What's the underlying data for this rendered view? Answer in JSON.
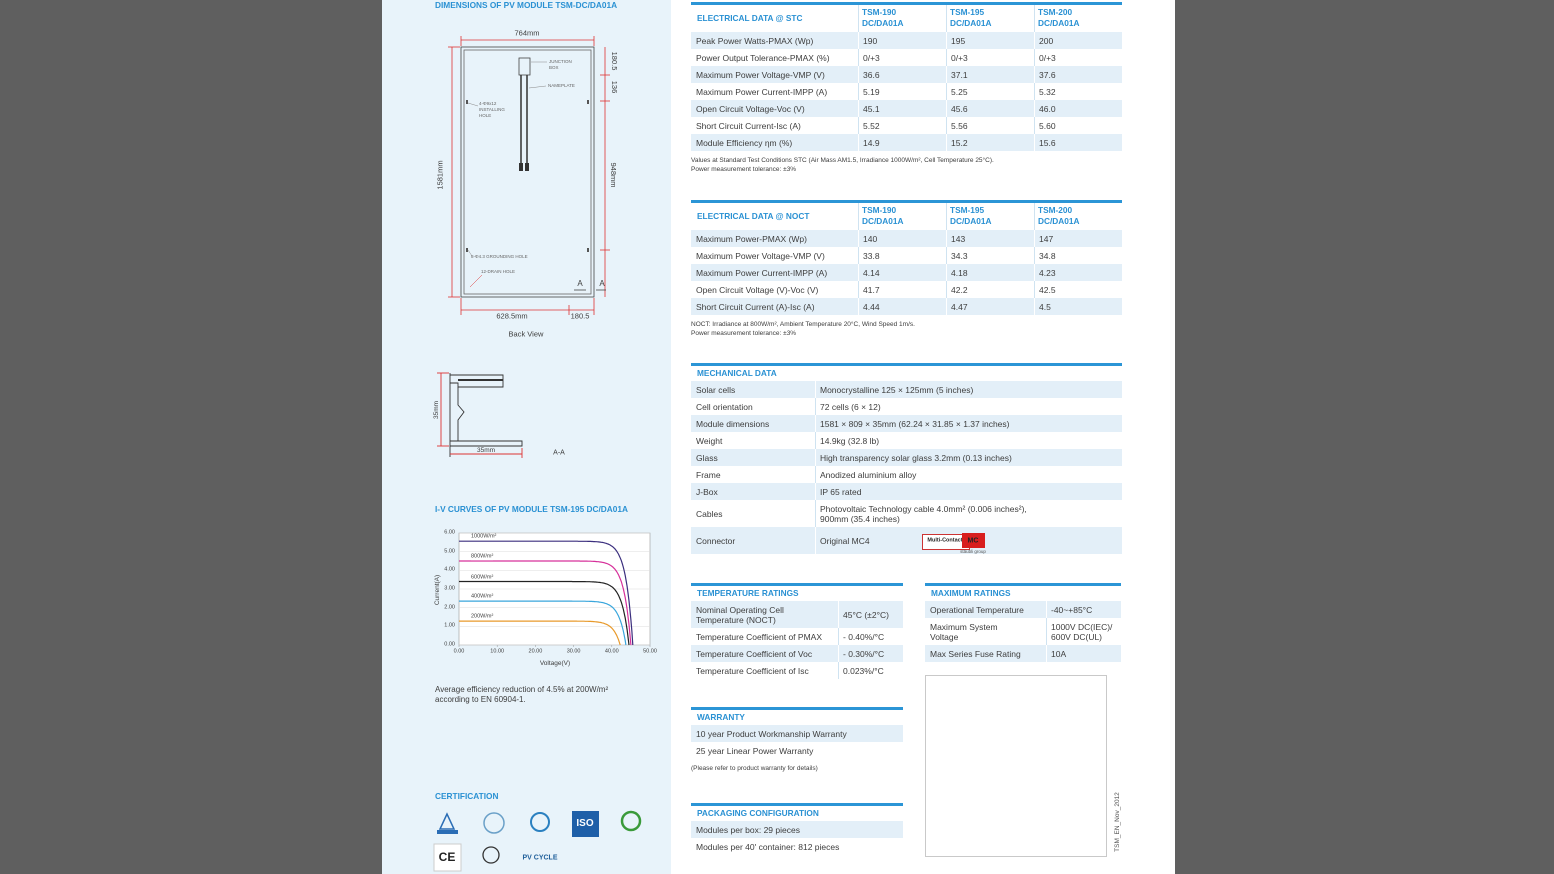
{
  "dimensions": {
    "title": "DIMENSIONS OF PV MODULE TSM-DC/DA01A",
    "width": "764mm",
    "top_offset": "180.5",
    "junction_offset": "136",
    "junction_box": [
      "JUNCTION",
      "BOX"
    ],
    "nameplate": "NAMEPLATE",
    "installing_hole": [
      "4-Φ9x12",
      "INSTALLING",
      "HOLE"
    ],
    "height": "1581mm",
    "hole_spacing": "948mm",
    "grounding_hole": "8-Φ4.3 GROUNDING HOLE",
    "drain_hole": "12-DRAIN HOLE",
    "section_mark_left": "A",
    "section_mark_right": "A",
    "bottom_width": "628.5mm",
    "bottom_offset": "180.5",
    "caption": "Back View"
  },
  "section": {
    "height": "35mm",
    "width": "35mm",
    "caption": "A-A"
  },
  "iv_curves": {
    "title": "I-V CURVES OF PV MODULE TSM-195 DC/DA01A",
    "y_label": "Current(A)",
    "x_label": "Voltage(V)",
    "xlim": [
      0,
      50
    ],
    "ylim": [
      0,
      6
    ],
    "grid": true,
    "xticks": [
      {
        "value": 0,
        "label": "0.00"
      },
      {
        "value": 10,
        "label": "10.00"
      },
      {
        "value": 20,
        "label": "20.00"
      },
      {
        "value": 30,
        "label": "30.00"
      },
      {
        "value": 40,
        "label": "40.00"
      },
      {
        "value": 50,
        "label": "50.00"
      }
    ],
    "yticks": [
      {
        "value": 0,
        "label": "0.00"
      },
      {
        "value": 1,
        "label": "1.00"
      },
      {
        "value": 2,
        "label": "2.00"
      },
      {
        "value": 3,
        "label": "3.00"
      },
      {
        "value": 4,
        "label": "4.00"
      },
      {
        "value": 5,
        "label": "5.00"
      },
      {
        "value": 6,
        "label": "6.00"
      }
    ],
    "curves": [
      {
        "name": "1000W/m²",
        "color": "#3b2f7e",
        "isc": 5.56,
        "voc": 45.5
      },
      {
        "name": "800W/m²",
        "color": "#d6309a",
        "isc": 4.5,
        "voc": 45
      },
      {
        "name": "600W/m²",
        "color": "#222222",
        "isc": 3.4,
        "voc": 44.5
      },
      {
        "name": "400W/m²",
        "color": "#3aa6dc",
        "isc": 2.35,
        "voc": 43.7
      },
      {
        "name": "200W/m²",
        "color": "#e89a2b",
        "isc": 1.28,
        "voc": 42.2
      }
    ],
    "note": [
      "Average efficiency reduction of 4.5% at 200W/m²",
      "according to EN 60904-1."
    ]
  },
  "certification": {
    "title": "CERTIFICATION",
    "logos": [
      "ISO",
      "CE",
      "PV CYCLE"
    ]
  },
  "stc": {
    "title": "ELECTRICAL DATA @ STC",
    "columns": [
      [
        "TSM-190",
        "DC/DA01A"
      ],
      [
        "TSM-195",
        "DC/DA01A"
      ],
      [
        "TSM-200",
        "DC/DA01A"
      ]
    ],
    "rows": [
      [
        "Peak Power Watts-PMAX (Wp)",
        "190",
        "195",
        "200"
      ],
      [
        "Power Output Tolerance-PMAX (%)",
        "0/+3",
        "0/+3",
        "0/+3"
      ],
      [
        "Maximum Power Voltage-VMP (V)",
        "36.6",
        "37.1",
        "37.6"
      ],
      [
        "Maximum Power Current-IMPP (A)",
        "5.19",
        "5.25",
        "5.32"
      ],
      [
        "Open Circuit Voltage-Voc (V)",
        "45.1",
        "45.6",
        "46.0"
      ],
      [
        "Short Circuit Current-Isc (A)",
        "5.52",
        "5.56",
        "5.60"
      ],
      [
        "Module Efficiency ηm (%)",
        "14.9",
        "15.2",
        "15.6"
      ]
    ],
    "notes": [
      "Values at Standard Test Conditions STC (Air Mass AM1.5, Irradiance 1000W/m², Cell Temperature 25°C).",
      "Power measurement tolerance: ±3%"
    ]
  },
  "noct": {
    "title": "ELECTRICAL DATA @ NOCT",
    "columns": [
      [
        "TSM-190",
        "DC/DA01A"
      ],
      [
        "TSM-195",
        "DC/DA01A"
      ],
      [
        "TSM-200",
        "DC/DA01A"
      ]
    ],
    "rows": [
      [
        "Maximum Power-PMAX (Wp)",
        "140",
        "143",
        "147"
      ],
      [
        "Maximum Power Voltage-VMP (V)",
        "33.8",
        "34.3",
        "34.8"
      ],
      [
        "Maximum Power Current-IMPP (A)",
        "4.14",
        "4.18",
        "4.23"
      ],
      [
        "Open Circuit Voltage (V)-Voc (V)",
        "41.7",
        "42.2",
        "42.5"
      ],
      [
        "Short Circuit Current (A)-Isc (A)",
        "4.44",
        "4.47",
        "4.5"
      ]
    ],
    "notes": [
      "NOCT: Irradiance at 800W/m², Ambient Temperature 20°C, Wind Speed 1m/s.",
      "Power measurement tolerance: ±3%"
    ]
  },
  "mechanical": {
    "title": "MECHANICAL DATA",
    "rows": [
      [
        "Solar cells",
        "Monocrystalline 125 × 125mm (5 inches)"
      ],
      [
        "Cell orientation",
        "72 cells (6 × 12)"
      ],
      [
        "Module dimensions",
        "1581 × 809 × 35mm (62.24 × 31.85 × 1.37 inches)"
      ],
      [
        "Weight",
        "14.9kg (32.8 lb)"
      ],
      [
        "Glass",
        "High transparency solar glass 3.2mm (0.13 inches)"
      ],
      [
        "Frame",
        "Anodized aluminium alloy"
      ],
      [
        "J-Box",
        "IP 65 rated"
      ],
      [
        "Cables",
        [
          "Photovoltaic Technology cable 4.0mm² (0.006 inches²),",
          "900mm (35.4 inches)"
        ]
      ],
      [
        "Connector",
        "Original MC4"
      ]
    ],
    "connector_logos": [
      "Multi-Contact",
      "MC",
      "stäubli group"
    ]
  },
  "temperature": {
    "title": "TEMPERATURE RATINGS",
    "rows": [
      [
        [
          "Nominal Operating Cell",
          "Temperature (NOCT)"
        ],
        "45°C (±2°C)"
      ],
      [
        "Temperature Coefficient of PMAX",
        "- 0.40%/°C"
      ],
      [
        "Temperature Coefficient of Voc",
        "- 0.30%/°C"
      ],
      [
        "Temperature Coefficient of Isc",
        "0.023%/°C"
      ]
    ]
  },
  "maximum": {
    "title": "MAXIMUM RATINGS",
    "rows": [
      [
        "Operational Temperature",
        "-40~+85°C"
      ],
      [
        [
          "Maximum System",
          "Voltage"
        ],
        [
          "1000V DC(IEC)/",
          "600V DC(UL)"
        ]
      ],
      [
        "Max Series Fuse Rating",
        "10A"
      ]
    ]
  },
  "warranty": {
    "title": "WARRANTY",
    "rows": [
      "10 year Product Workmanship Warranty",
      "25 year Linear Power Warranty"
    ],
    "notes": [
      "(Please refer to product warranty for details)"
    ]
  },
  "packaging": {
    "title": "PACKAGING CONFIGURATION",
    "rows": [
      "Modules per box: 29 pieces",
      "Modules per 40' container: 812 pieces"
    ]
  },
  "footer_code": "TSM_EN_Nov_2012"
}
